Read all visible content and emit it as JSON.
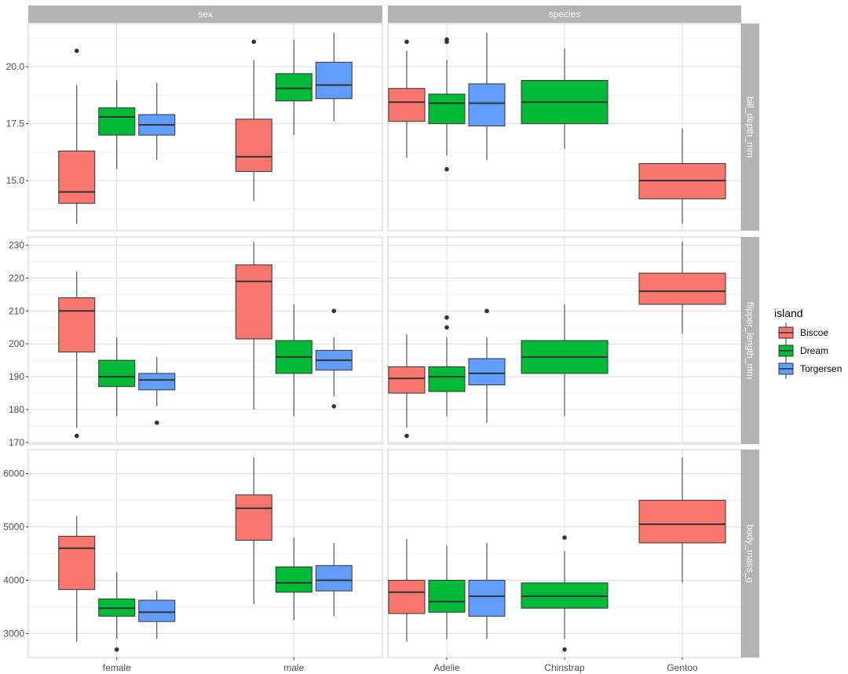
{
  "colors": {
    "Biscoe": "#F8766D",
    "Dream": "#00BA38",
    "Torgersen": "#619CFF"
  },
  "chart_data": {
    "type": "boxplot",
    "legend": {
      "title": "island",
      "entries": [
        "Biscoe",
        "Dream",
        "Torgersen"
      ],
      "position": "right"
    },
    "columns": [
      "sex",
      "species"
    ],
    "rows": [
      {
        "label": "bill_depth_mm",
        "ylim": [
          12.8,
          21.9
        ],
        "major_ticks": [
          15.0,
          17.5,
          20.0
        ],
        "tick_labels": [
          "15.0",
          "17.5",
          "20.0"
        ],
        "minor_ticks": [
          13.75,
          16.25,
          18.75,
          21.25
        ]
      },
      {
        "label": "flipper_length_mm",
        "ylim": [
          169.5,
          232.5
        ],
        "major_ticks": [
          170,
          180,
          190,
          200,
          210,
          220,
          230
        ],
        "tick_labels": [
          "170",
          "180",
          "190",
          "200",
          "210",
          "220",
          "230"
        ],
        "minor_ticks": [
          175,
          185,
          195,
          205,
          215,
          225
        ]
      },
      {
        "label": "body_mass_g",
        "ylim": [
          2550,
          6450
        ],
        "major_ticks": [
          3000,
          4000,
          5000,
          6000
        ],
        "tick_labels": [
          "3000",
          "4000",
          "5000",
          "6000"
        ],
        "minor_ticks": [
          3500,
          4500,
          5500
        ]
      }
    ],
    "panels": [
      {
        "column": "sex",
        "categories": [
          "female",
          "male"
        ],
        "boxes": [
          {
            "row": 0,
            "category": "female",
            "group": "Biscoe",
            "stats": [
              13.1,
              14.0,
              14.5,
              16.3,
              19.2
            ],
            "outliers": [
              20.7
            ]
          },
          {
            "row": 0,
            "category": "female",
            "group": "Dream",
            "stats": [
              15.5,
              17.0,
              17.8,
              18.2,
              19.4
            ],
            "outliers": []
          },
          {
            "row": 0,
            "category": "female",
            "group": "Torgersen",
            "stats": [
              15.9,
              17.0,
              17.45,
              17.9,
              19.3
            ],
            "outliers": []
          },
          {
            "row": 0,
            "category": "male",
            "group": "Biscoe",
            "stats": [
              14.1,
              15.4,
              16.05,
              17.7,
              20.3
            ],
            "outliers": [
              21.1
            ]
          },
          {
            "row": 0,
            "category": "male",
            "group": "Dream",
            "stats": [
              17.0,
              18.5,
              19.05,
              19.7,
              21.2
            ],
            "outliers": []
          },
          {
            "row": 0,
            "category": "male",
            "group": "Torgersen",
            "stats": [
              17.6,
              18.6,
              19.2,
              20.2,
              21.5
            ],
            "outliers": []
          },
          {
            "row": 1,
            "category": "female",
            "group": "Biscoe",
            "stats": [
              174.5,
              197.5,
              210.0,
              214.0,
              222.0
            ],
            "outliers": [
              172
            ]
          },
          {
            "row": 1,
            "category": "female",
            "group": "Dream",
            "stats": [
              178.0,
              187.0,
              190.0,
              195.0,
              202.0
            ],
            "outliers": []
          },
          {
            "row": 1,
            "category": "female",
            "group": "Torgersen",
            "stats": [
              181.0,
              186.0,
              189.0,
              191.0,
              196.0
            ],
            "outliers": [
              176
            ]
          },
          {
            "row": 1,
            "category": "male",
            "group": "Biscoe",
            "stats": [
              180.0,
              201.5,
              219.0,
              224.0,
              231.0
            ],
            "outliers": []
          },
          {
            "row": 1,
            "category": "male",
            "group": "Dream",
            "stats": [
              178.0,
              191.0,
              196.0,
              201.0,
              212.0
            ],
            "outliers": []
          },
          {
            "row": 1,
            "category": "male",
            "group": "Torgersen",
            "stats": [
              184.0,
              192.0,
              195.0,
              198.0,
              202.0
            ],
            "outliers": [
              181,
              210
            ]
          },
          {
            "row": 2,
            "category": "female",
            "group": "Biscoe",
            "stats": [
              2850,
              3825,
              4600,
              4825,
              5200
            ],
            "outliers": []
          },
          {
            "row": 2,
            "category": "female",
            "group": "Dream",
            "stats": [
              2900,
              3325,
              3475,
              3650,
              4150
            ],
            "outliers": [
              2700
            ]
          },
          {
            "row": 2,
            "category": "female",
            "group": "Torgersen",
            "stats": [
              2900,
              3225,
              3400,
              3625,
              3800
            ],
            "outliers": []
          },
          {
            "row": 2,
            "category": "male",
            "group": "Biscoe",
            "stats": [
              3550,
              4750,
              5350,
              5600,
              6300
            ],
            "outliers": []
          },
          {
            "row": 2,
            "category": "male",
            "group": "Dream",
            "stats": [
              3250,
              3775,
              3950,
              4250,
              4800
            ],
            "outliers": []
          },
          {
            "row": 2,
            "category": "male",
            "group": "Torgersen",
            "stats": [
              3325,
              3800,
              4000,
              4275,
              4700
            ],
            "outliers": []
          }
        ]
      },
      {
        "column": "species",
        "categories": [
          "Adelie",
          "Chinstrap",
          "Gentoo"
        ],
        "boxes": [
          {
            "row": 0,
            "category": "Adelie",
            "group": "Biscoe",
            "stats": [
              16.0,
              17.6,
              18.45,
              19.05,
              20.7
            ],
            "outliers": [
              21.1
            ]
          },
          {
            "row": 0,
            "category": "Adelie",
            "group": "Dream",
            "stats": [
              16.1,
              17.5,
              18.4,
              18.8,
              20.3
            ],
            "outliers": [
              15.5,
              21.1,
              21.2
            ]
          },
          {
            "row": 0,
            "category": "Adelie",
            "group": "Torgersen",
            "stats": [
              15.9,
              17.4,
              18.4,
              19.25,
              21.5
            ],
            "outliers": []
          },
          {
            "row": 0,
            "category": "Chinstrap",
            "group": "Dream",
            "stats": [
              16.4,
              17.5,
              18.45,
              19.4,
              20.8
            ],
            "outliers": []
          },
          {
            "row": 0,
            "category": "Gentoo",
            "group": "Biscoe",
            "stats": [
              13.1,
              14.2,
              15.0,
              15.75,
              17.3
            ],
            "outliers": []
          },
          {
            "row": 1,
            "category": "Adelie",
            "group": "Biscoe",
            "stats": [
              174.5,
              185.0,
              189.5,
              193.0,
              203.0
            ],
            "outliers": [
              172
            ]
          },
          {
            "row": 1,
            "category": "Adelie",
            "group": "Dream",
            "stats": [
              178.0,
              185.5,
              190.0,
              193.0,
              202.0
            ],
            "outliers": [
              205,
              208
            ]
          },
          {
            "row": 1,
            "category": "Adelie",
            "group": "Torgersen",
            "stats": [
              176.0,
              187.5,
              191.0,
              195.5,
              202.0
            ],
            "outliers": [
              210
            ]
          },
          {
            "row": 1,
            "category": "Chinstrap",
            "group": "Dream",
            "stats": [
              178.0,
              191.0,
              196.0,
              201.0,
              212.0
            ],
            "outliers": []
          },
          {
            "row": 1,
            "category": "Gentoo",
            "group": "Biscoe",
            "stats": [
              203.0,
              212.0,
              216.0,
              221.5,
              231.0
            ],
            "outliers": []
          },
          {
            "row": 2,
            "category": "Adelie",
            "group": "Biscoe",
            "stats": [
              2850,
              3375,
              3775,
              4000,
              4775
            ],
            "outliers": []
          },
          {
            "row": 2,
            "category": "Adelie",
            "group": "Dream",
            "stats": [
              2900,
              3400,
              3600,
              4000,
              4650
            ],
            "outliers": []
          },
          {
            "row": 2,
            "category": "Adelie",
            "group": "Torgersen",
            "stats": [
              2900,
              3325,
              3700,
              4000,
              4700
            ],
            "outliers": []
          },
          {
            "row": 2,
            "category": "Chinstrap",
            "group": "Dream",
            "stats": [
              2900,
              3475,
              3700,
              3950,
              4550
            ],
            "outliers": [
              2700,
              4800
            ]
          },
          {
            "row": 2,
            "category": "Gentoo",
            "group": "Biscoe",
            "stats": [
              3950,
              4700,
              5050,
              5500,
              6300
            ],
            "outliers": []
          }
        ]
      }
    ]
  }
}
